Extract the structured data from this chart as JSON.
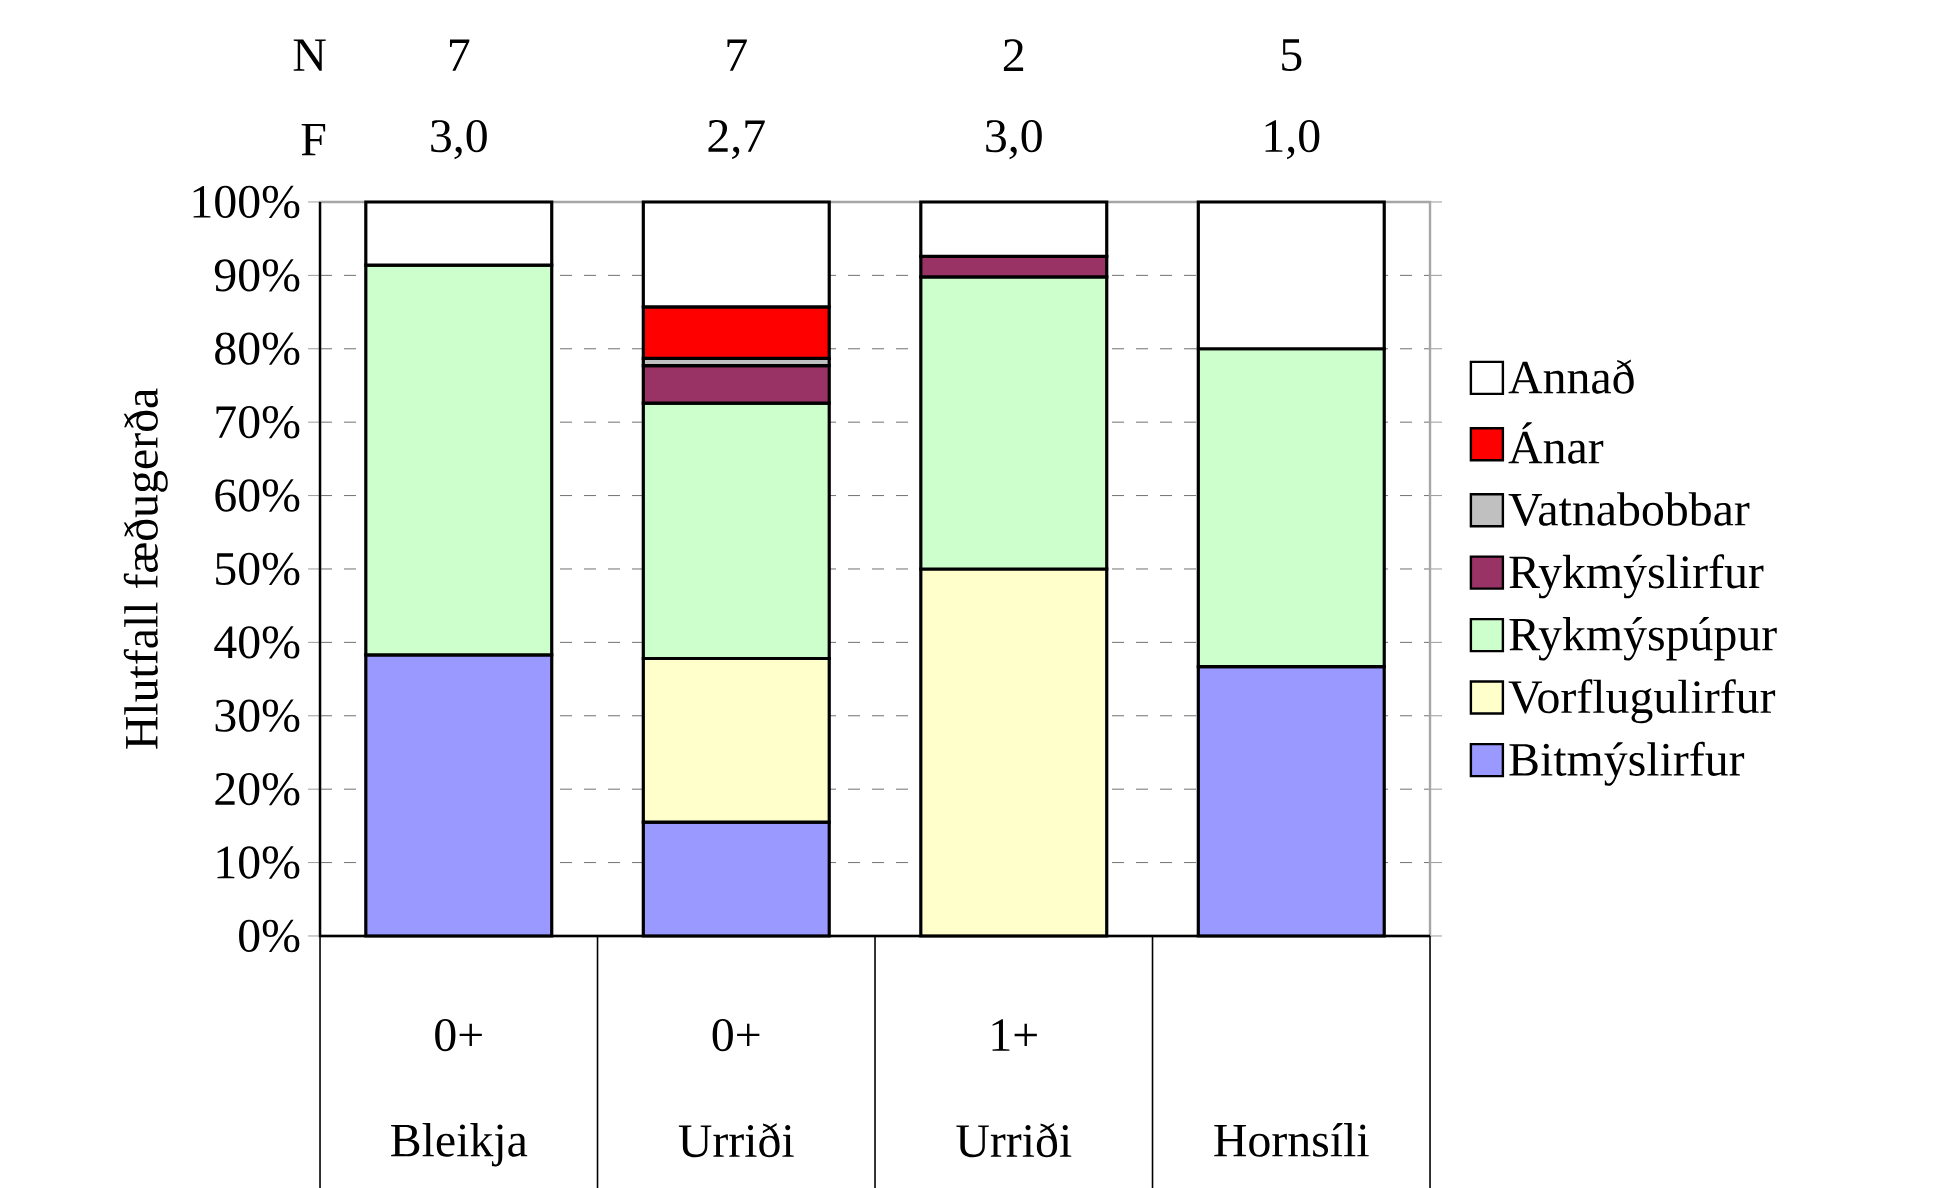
{
  "chart_data": {
    "type": "bar",
    "stacked": true,
    "ylabel": "Hlutfall fæðugerða",
    "categories": [
      "Bleikja",
      "Urriði",
      "Urriði",
      "Hornsíli"
    ],
    "series": [
      {
        "name": "Bitmýslirfur",
        "color": "#9999ff",
        "values": [
          38.3,
          15.5,
          0,
          36.7
        ]
      },
      {
        "name": "Vorflugulirfur",
        "color": "#ffffcc",
        "values": [
          0,
          22.3,
          50,
          0
        ]
      },
      {
        "name": "Rykmýspúpur",
        "color": "#ccffcc",
        "values": [
          53.1,
          34.8,
          39.8,
          43.3
        ]
      },
      {
        "name": "Rykmýslirfur",
        "color": "#993366",
        "values": [
          0,
          5.1,
          2.8,
          0
        ]
      },
      {
        "name": "Vatnabobbar",
        "color": "#c0c0c0",
        "values": [
          0,
          1.0,
          0,
          0
        ]
      },
      {
        "name": "Ánar",
        "color": "#ff0000",
        "values": [
          0,
          7.0,
          0,
          0
        ]
      },
      {
        "name": "Annað",
        "color": "#ffffff",
        "values": [
          8.6,
          14.3,
          7.4,
          20.0
        ]
      }
    ],
    "ylim": [
      0,
      100
    ],
    "yticks": [
      {
        "value": 0,
        "label": "0%"
      },
      {
        "value": 10,
        "label": "10%"
      },
      {
        "value": 20,
        "label": "20%"
      },
      {
        "value": 30,
        "label": "30%"
      },
      {
        "value": 40,
        "label": "40%"
      },
      {
        "value": 50,
        "label": "50%"
      },
      {
        "value": 60,
        "label": "60%"
      },
      {
        "value": 70,
        "label": "70%"
      },
      {
        "value": 80,
        "label": "80%"
      },
      {
        "value": 90,
        "label": "90%"
      },
      {
        "value": 100,
        "label": "100%"
      }
    ],
    "grid": "y",
    "legend": "right",
    "annotations": [
      "N",
      "7",
      "7",
      "2",
      "5",
      "F",
      "3,0",
      "2,7",
      "3,0",
      "1,0",
      "0+",
      "0+",
      "1+"
    ]
  }
}
